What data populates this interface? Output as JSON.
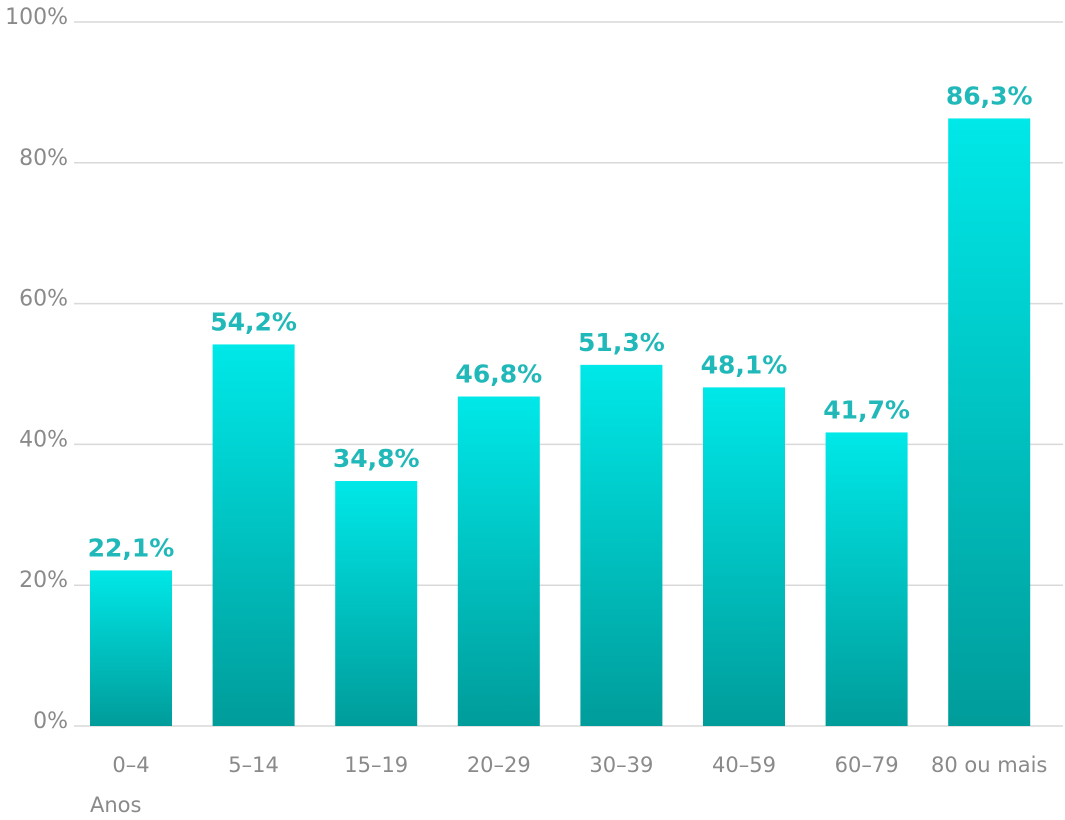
{
  "chart_data": {
    "type": "bar",
    "categories": [
      "0–4",
      "5–14",
      "15–19",
      "20–29",
      "30–39",
      "40–59",
      "60–79",
      "80 ou mais"
    ],
    "values": [
      22.1,
      54.2,
      34.8,
      46.8,
      51.3,
      48.1,
      41.7,
      86.3
    ],
    "value_labels": [
      "22,1%",
      "54,2%",
      "34,8%",
      "46,8%",
      "51,3%",
      "48,1%",
      "41,7%",
      "86,3%"
    ],
    "ylim": [
      0,
      100
    ],
    "yticks": [
      0,
      20,
      40,
      60,
      80,
      100
    ],
    "ytick_labels": [
      "0%",
      "20%",
      "40%",
      "60%",
      "80%",
      "100%"
    ],
    "xlabel": "Anos",
    "ylabel": "",
    "title": "",
    "grid": true,
    "colors": {
      "bar_top": "#00e8e8",
      "bar_bottom": "#009c9a",
      "value_label": "#20b8b8",
      "axis_text": "#8a8a8a",
      "grid": "#d9d9d9"
    }
  }
}
